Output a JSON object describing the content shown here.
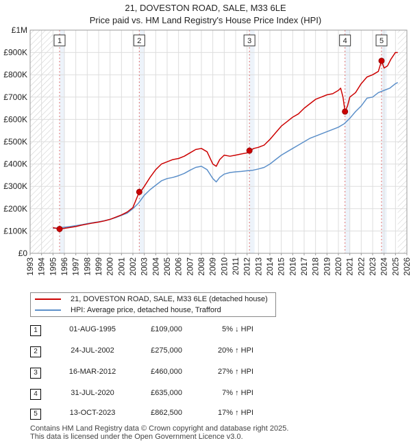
{
  "chart_data": {
    "type": "line",
    "title": "21, DOVESTON ROAD, SALE, M33 6LE",
    "subtitle": "Price paid vs. HM Land Registry's House Price Index (HPI)",
    "xlim": [
      1993,
      2026
    ],
    "ylim": [
      0,
      1000000
    ],
    "x_ticks": [
      1993,
      1994,
      1995,
      1996,
      1997,
      1998,
      1999,
      2000,
      2001,
      2002,
      2003,
      2004,
      2005,
      2006,
      2007,
      2008,
      2009,
      2010,
      2011,
      2012,
      2013,
      2014,
      2015,
      2016,
      2017,
      2018,
      2019,
      2020,
      2021,
      2022,
      2023,
      2024,
      2025,
      2026
    ],
    "y_ticks": [
      {
        "value": 0,
        "label": "£0"
      },
      {
        "value": 100000,
        "label": "£100K"
      },
      {
        "value": 200000,
        "label": "£200K"
      },
      {
        "value": 300000,
        "label": "£300K"
      },
      {
        "value": 400000,
        "label": "£400K"
      },
      {
        "value": 500000,
        "label": "£500K"
      },
      {
        "value": 600000,
        "label": "£600K"
      },
      {
        "value": 700000,
        "label": "£700K"
      },
      {
        "value": 800000,
        "label": "£800K"
      },
      {
        "value": 900000,
        "label": "£900K"
      },
      {
        "value": 1000000,
        "label": "£1M"
      }
    ],
    "hatched_periods": [
      [
        1993,
        1995.0
      ],
      [
        2025.2,
        2026
      ]
    ],
    "series": [
      {
        "name": "21, DOVESTON ROAD, SALE, M33 6LE (detached house)",
        "color": "#cc0000",
        "x": [
          1995.0,
          1995.58,
          1996.0,
          1996.5,
          1997.0,
          1997.5,
          1998.0,
          1998.5,
          1999.0,
          1999.5,
          2000.0,
          2000.5,
          2001.0,
          2001.5,
          2002.0,
          2002.56,
          2002.8,
          2003.0,
          2003.5,
          2004.0,
          2004.5,
          2005.0,
          2005.5,
          2006.0,
          2006.5,
          2007.0,
          2007.5,
          2008.0,
          2008.5,
          2009.0,
          2009.3,
          2009.6,
          2010.0,
          2010.5,
          2011.0,
          2011.5,
          2012.0,
          2012.21,
          2012.6,
          2013.0,
          2013.5,
          2014.0,
          2014.5,
          2015.0,
          2015.5,
          2016.0,
          2016.5,
          2017.0,
          2017.5,
          2018.0,
          2018.5,
          2019.0,
          2019.5,
          2020.0,
          2020.2,
          2020.4,
          2020.58,
          2020.8,
          2021.0,
          2021.5,
          2022.0,
          2022.5,
          2023.0,
          2023.5,
          2023.78,
          2024.0,
          2024.3,
          2024.6,
          2025.0,
          2025.2
        ],
        "y": [
          115000,
          109000,
          112000,
          116000,
          120000,
          126000,
          131000,
          136000,
          140000,
          145000,
          152000,
          162000,
          172000,
          185000,
          205000,
          275000,
          285000,
          300000,
          340000,
          375000,
          400000,
          410000,
          420000,
          425000,
          435000,
          450000,
          465000,
          470000,
          455000,
          400000,
          390000,
          420000,
          440000,
          435000,
          440000,
          445000,
          450000,
          460000,
          470000,
          475000,
          485000,
          510000,
          540000,
          570000,
          590000,
          610000,
          625000,
          650000,
          670000,
          690000,
          700000,
          710000,
          715000,
          730000,
          740000,
          700000,
          635000,
          660000,
          700000,
          720000,
          760000,
          790000,
          800000,
          815000,
          862500,
          830000,
          840000,
          870000,
          900000,
          900000
        ]
      },
      {
        "name": "HPI: Average price, detached house, Trafford",
        "color": "#5b8fc9",
        "x": [
          1995.0,
          1995.5,
          1996.0,
          1996.5,
          1997.0,
          1997.5,
          1998.0,
          1998.5,
          1999.0,
          1999.5,
          2000.0,
          2000.5,
          2001.0,
          2001.5,
          2002.0,
          2002.5,
          2003.0,
          2003.5,
          2004.0,
          2004.5,
          2005.0,
          2005.5,
          2006.0,
          2006.5,
          2007.0,
          2007.5,
          2008.0,
          2008.5,
          2009.0,
          2009.3,
          2009.6,
          2010.0,
          2010.5,
          2011.0,
          2011.5,
          2012.0,
          2012.5,
          2013.0,
          2013.5,
          2014.0,
          2014.5,
          2015.0,
          2015.5,
          2016.0,
          2016.5,
          2017.0,
          2017.5,
          2018.0,
          2018.5,
          2019.0,
          2019.5,
          2020.0,
          2020.5,
          2021.0,
          2021.5,
          2022.0,
          2022.5,
          2023.0,
          2023.5,
          2024.0,
          2024.5,
          2025.0,
          2025.2
        ],
        "y": [
          112000,
          114000,
          117000,
          120000,
          124000,
          128000,
          133000,
          137000,
          141000,
          146000,
          152000,
          160000,
          170000,
          180000,
          200000,
          225000,
          260000,
          285000,
          305000,
          325000,
          335000,
          340000,
          348000,
          358000,
          372000,
          385000,
          390000,
          375000,
          335000,
          320000,
          340000,
          355000,
          362000,
          365000,
          367000,
          370000,
          372000,
          378000,
          385000,
          400000,
          420000,
          440000,
          455000,
          470000,
          485000,
          500000,
          515000,
          525000,
          535000,
          545000,
          555000,
          565000,
          580000,
          605000,
          635000,
          660000,
          695000,
          700000,
          720000,
          730000,
          740000,
          760000,
          765000
        ]
      }
    ],
    "sales": [
      {
        "num": "1",
        "x": 1995.58,
        "y": 109000
      },
      {
        "num": "2",
        "x": 2002.56,
        "y": 275000
      },
      {
        "num": "3",
        "x": 2012.21,
        "y": 460000
      },
      {
        "num": "4",
        "x": 2020.58,
        "y": 635000
      },
      {
        "num": "5",
        "x": 2023.78,
        "y": 862500
      }
    ]
  },
  "legend": {
    "items": [
      {
        "label": "21, DOVESTON ROAD, SALE, M33 6LE (detached house)",
        "color": "#cc0000"
      },
      {
        "label": "HPI: Average price, detached house, Trafford",
        "color": "#5b8fc9"
      }
    ]
  },
  "transactions": [
    {
      "num": "1",
      "date": "01-AUG-1995",
      "price": "£109,000",
      "hpi": "5% ↓ HPI"
    },
    {
      "num": "2",
      "date": "24-JUL-2002",
      "price": "£275,000",
      "hpi": "20% ↑ HPI"
    },
    {
      "num": "3",
      "date": "16-MAR-2012",
      "price": "£460,000",
      "hpi": "27% ↑ HPI"
    },
    {
      "num": "4",
      "date": "31-JUL-2020",
      "price": "£635,000",
      "hpi": "7% ↑ HPI"
    },
    {
      "num": "5",
      "date": "13-OCT-2023",
      "price": "£862,500",
      "hpi": "17% ↑ HPI"
    }
  ],
  "footer": {
    "line1": "Contains HM Land Registry data © Crown copyright and database right 2025.",
    "line2": "This data is licensed under the Open Government Licence v3.0."
  }
}
